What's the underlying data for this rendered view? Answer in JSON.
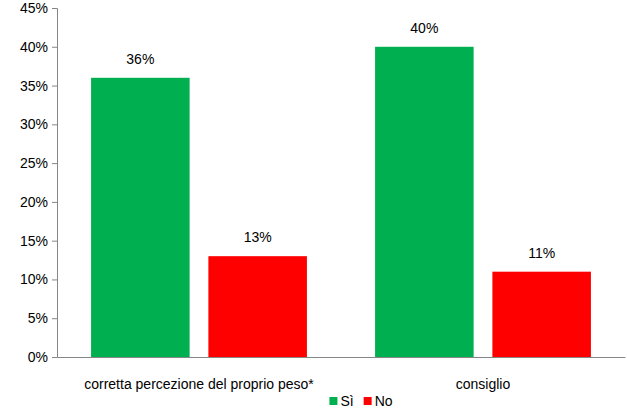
{
  "chart_data": {
    "type": "bar",
    "categories": [
      "corretta percezione del proprio peso*",
      "consiglio"
    ],
    "series": [
      {
        "name": "Sì",
        "color": "#00b050",
        "values": [
          36,
          40
        ],
        "value_labels": [
          "36%",
          "40%"
        ]
      },
      {
        "name": "No",
        "color": "#ff0000",
        "values": [
          13,
          11
        ],
        "value_labels": [
          "13%",
          "11%"
        ]
      }
    ],
    "ylim": [
      0,
      45
    ],
    "yticks": [
      {
        "value": 0,
        "label": "0%"
      },
      {
        "value": 5,
        "label": "5%"
      },
      {
        "value": 10,
        "label": "10%"
      },
      {
        "value": 15,
        "label": "15%"
      },
      {
        "value": 20,
        "label": "20%"
      },
      {
        "value": 25,
        "label": "25%"
      },
      {
        "value": 30,
        "label": "30%"
      },
      {
        "value": 35,
        "label": "35%"
      },
      {
        "value": 40,
        "label": "40%"
      },
      {
        "value": 45,
        "label": "45%"
      }
    ],
    "grid": false,
    "legend": "bottom",
    "data_labels": true
  }
}
